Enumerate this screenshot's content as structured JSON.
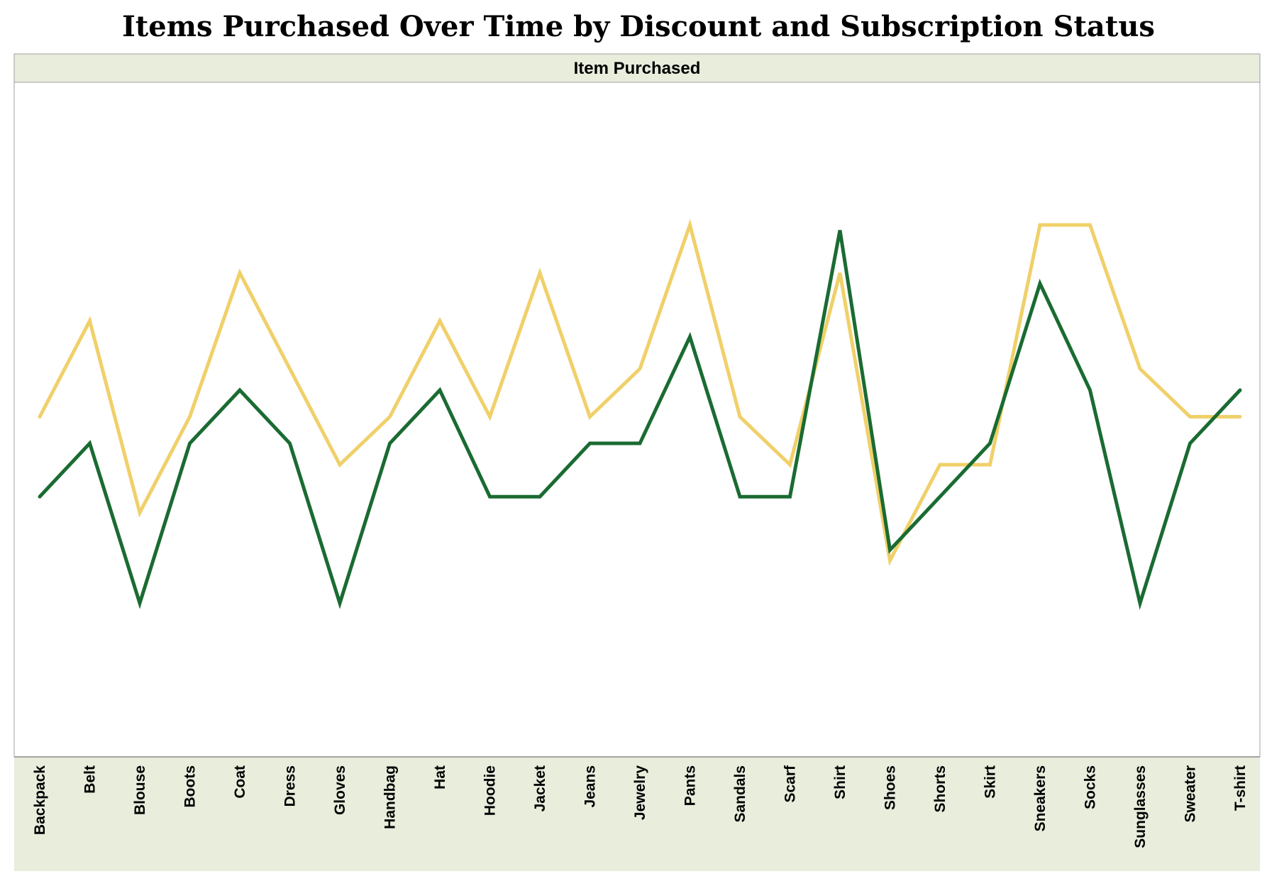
{
  "title": "Items Purchased Over Time by Discount and Subscription Status",
  "chart_data": {
    "type": "line",
    "title": "Items Purchased Over Time by Discount and Subscription Status",
    "facet_header": "Item Purchased",
    "xlabel": "",
    "ylabel": "",
    "categories": [
      "Backpack",
      "Belt",
      "Blouse",
      "Boots",
      "Coat",
      "Dress",
      "Gloves",
      "Handbag",
      "Hat",
      "Hoodie",
      "Jacket",
      "Jeans",
      "Jewelry",
      "Pants",
      "Sandals",
      "Scarf",
      "Shirt",
      "Shoes",
      "Shorts",
      "Skirt",
      "Sneakers",
      "Socks",
      "Sunglasses",
      "Sweater",
      "T-shirt"
    ],
    "ylim": [
      0,
      10
    ],
    "grid": false,
    "legend": "none",
    "series": [
      {
        "color": "#f0d06a",
        "values": [
          5.0,
          6.8,
          3.2,
          5.0,
          7.7,
          5.9,
          4.1,
          5.0,
          6.8,
          5.0,
          7.7,
          5.0,
          5.9,
          8.6,
          5.0,
          4.1,
          7.7,
          2.3,
          4.1,
          4.1,
          8.6,
          8.6,
          5.9,
          5.0,
          5.0
        ]
      },
      {
        "color": "#1a6b32",
        "values": [
          3.5,
          4.5,
          1.5,
          4.5,
          5.5,
          4.5,
          1.5,
          4.5,
          5.5,
          3.5,
          3.5,
          4.5,
          4.5,
          6.5,
          3.5,
          3.5,
          8.5,
          2.5,
          3.5,
          4.5,
          7.5,
          5.5,
          1.5,
          4.5,
          5.5
        ]
      }
    ],
    "colors": {
      "header_band": "#e8eddc",
      "frame": "#a0a0a0"
    }
  }
}
